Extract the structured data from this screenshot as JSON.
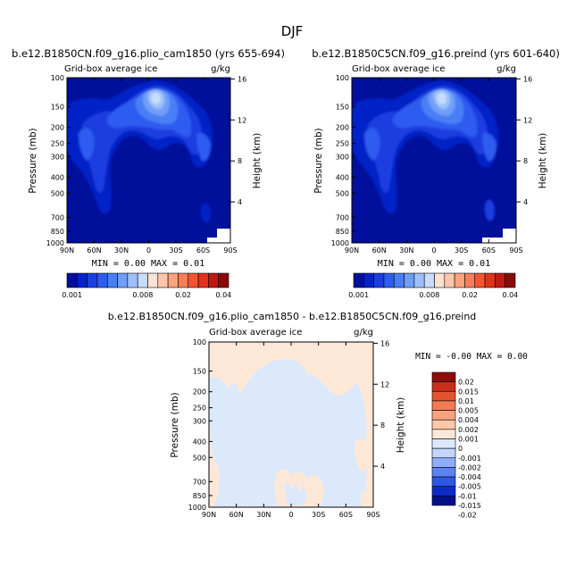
{
  "page_title": "DJF",
  "colors": {
    "seq": [
      "#00109a",
      "#0622c6",
      "#1a3ee0",
      "#2d5cf0",
      "#4a7ef5",
      "#6f9ef8",
      "#9cc0fb",
      "#c7dcfd",
      "#fde2d2",
      "#fdc6ad",
      "#fca37f",
      "#f97d57",
      "#f4552f",
      "#e2311b",
      "#c01910",
      "#8a0a0a"
    ],
    "diff": [
      "#00108a",
      "#0a2bc8",
      "#2f56e8",
      "#5c82f5",
      "#8eaefa",
      "#c2d6fd",
      "#dbe9fb",
      "#fde8d8",
      "#fbc8aa",
      "#f7a37f",
      "#f27b55",
      "#e4532f",
      "#c92f1a",
      "#8e0c0c"
    ]
  },
  "top_left": {
    "title": "b.e12.B1850CN.f09_g16.plio_cam1850 (yrs 655-694)",
    "var_label": "Grid-box average ice",
    "units": "g/kg",
    "ylabel": "Pressure (mb)",
    "ylabel_right": "Height (km)",
    "stats": "MIN =    0.00   MAX =    0.01",
    "colorbar_labels": [
      "0.001",
      "0.008",
      "0.02",
      "0.04"
    ]
  },
  "top_right": {
    "title": "b.e12.B1850C5CN.f09_g16.preind (yrs 601-640)",
    "var_label": "Grid-box average ice",
    "units": "g/kg",
    "ylabel": "Pressure (mb)",
    "ylabel_right": "Height (km)",
    "stats": "MIN =    0.00   MAX =    0.01",
    "colorbar_labels": [
      "0.001",
      "0.008",
      "0.02",
      "0.04"
    ]
  },
  "bottom": {
    "title": "b.e12.B1850CN.f09_g16.plio_cam1850 - b.e12.B1850C5CN.f09_g16.preind",
    "var_label": "Grid-box average ice",
    "units": "g/kg",
    "ylabel": "Pressure (mb)",
    "ylabel_right": "Height (km)",
    "stats": "MIN = -0.00   MAX =    0.00",
    "colorbar_labels": [
      "0.02",
      "0.015",
      "0.01",
      "0.005",
      "0.004",
      "0.002",
      "0.001",
      "0",
      "-0.001",
      "-0.002",
      "-0.004",
      "-0.005",
      "-0.01",
      "-0.015",
      "-0.02"
    ]
  },
  "chart_data": [
    {
      "type": "heatmap",
      "title": "b.e12.B1850CN.f09_g16.plio_cam1850 (yrs 655-694)",
      "xlabel": "",
      "ylabel": "Pressure (mb)",
      "x_ticks": [
        "90N",
        "60N",
        "30N",
        "0",
        "30S",
        "60S",
        "90S"
      ],
      "x_values": [
        90,
        60,
        30,
        0,
        -30,
        -60,
        -90
      ],
      "y_ticks": [
        "100",
        "150",
        "200",
        "250",
        "300",
        "400",
        "500",
        "700",
        "850",
        "1000"
      ],
      "y_values": [
        100,
        150,
        200,
        250,
        300,
        400,
        500,
        700,
        850,
        1000
      ],
      "y2_ticks": [
        "16",
        "12",
        "8",
        "4"
      ],
      "y2_values": [
        16,
        12,
        8,
        4
      ],
      "ylim": [
        1000,
        100
      ],
      "min": 0.0,
      "max": 0.01,
      "levels": [
        0.001,
        0.002,
        0.003,
        0.004,
        0.005,
        0.006,
        0.007,
        0.008,
        0.009,
        0.01,
        0.015,
        0.02,
        0.025,
        0.03,
        0.035,
        0.04
      ]
    },
    {
      "type": "heatmap",
      "title": "b.e12.B1850C5CN.f09_g16.preind (yrs 601-640)",
      "xlabel": "",
      "ylabel": "Pressure (mb)",
      "x_ticks": [
        "90N",
        "60N",
        "30N",
        "0",
        "30S",
        "60S",
        "90S"
      ],
      "x_values": [
        90,
        60,
        30,
        0,
        -30,
        -60,
        -90
      ],
      "y_ticks": [
        "100",
        "150",
        "200",
        "250",
        "300",
        "400",
        "500",
        "700",
        "850",
        "1000"
      ],
      "y_values": [
        100,
        150,
        200,
        250,
        300,
        400,
        500,
        700,
        850,
        1000
      ],
      "y2_ticks": [
        "16",
        "12",
        "8",
        "4"
      ],
      "y2_values": [
        16,
        12,
        8,
        4
      ],
      "ylim": [
        1000,
        100
      ],
      "min": 0.0,
      "max": 0.01,
      "levels": [
        0.001,
        0.002,
        0.003,
        0.004,
        0.005,
        0.006,
        0.007,
        0.008,
        0.009,
        0.01,
        0.015,
        0.02,
        0.025,
        0.03,
        0.035,
        0.04
      ]
    },
    {
      "type": "heatmap",
      "title": "b.e12.B1850CN.f09_g16.plio_cam1850 - b.e12.B1850C5CN.f09_g16.preind",
      "xlabel": "",
      "ylabel": "Pressure (mb)",
      "x_ticks": [
        "90N",
        "60N",
        "30N",
        "0",
        "30S",
        "60S",
        "90S"
      ],
      "x_values": [
        90,
        60,
        30,
        0,
        -30,
        -60,
        -90
      ],
      "y_ticks": [
        "100",
        "150",
        "200",
        "250",
        "300",
        "400",
        "500",
        "700",
        "850",
        "1000"
      ],
      "y_values": [
        100,
        150,
        200,
        250,
        300,
        400,
        500,
        700,
        850,
        1000
      ],
      "y2_ticks": [
        "16",
        "12",
        "8",
        "4"
      ],
      "y2_values": [
        16,
        12,
        8,
        4
      ],
      "ylim": [
        1000,
        100
      ],
      "min": -0.0,
      "max": 0.0,
      "levels": [
        -0.02,
        -0.015,
        -0.01,
        -0.005,
        -0.004,
        -0.002,
        -0.001,
        0,
        0.001,
        0.002,
        0.004,
        0.005,
        0.01,
        0.015,
        0.02
      ]
    }
  ]
}
